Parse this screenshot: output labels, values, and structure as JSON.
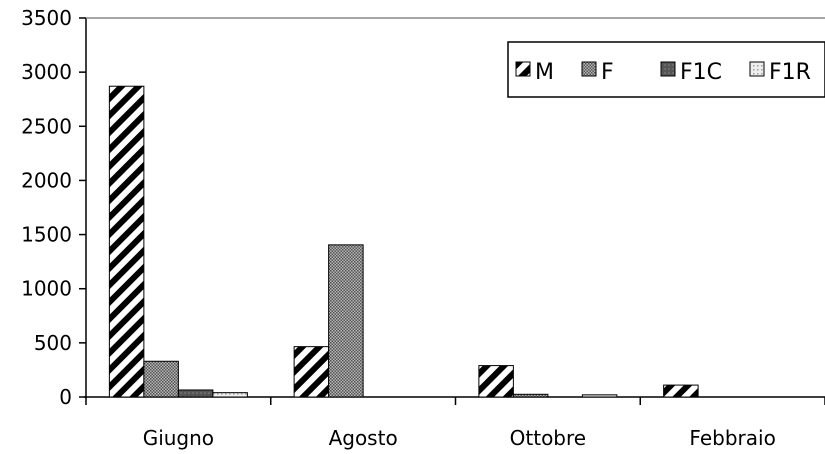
{
  "chart_data": {
    "type": "bar",
    "categories": [
      "Giugno",
      "Agosto",
      "Ottobre",
      "Febbraio"
    ],
    "series": [
      {
        "name": "M",
        "values": [
          2870,
          465,
          290,
          110
        ],
        "pattern": "diagonal-hatch",
        "color": "#000000"
      },
      {
        "name": "F",
        "values": [
          330,
          1405,
          25,
          0
        ],
        "pattern": "crosshatch",
        "color": "#8a8a8a"
      },
      {
        "name": "F1C",
        "values": [
          65,
          0,
          0,
          0
        ],
        "pattern": "solid-dark",
        "color": "#5a5a5a"
      },
      {
        "name": "F1R",
        "values": [
          40,
          0,
          20,
          0
        ],
        "pattern": "dotted-light",
        "color": "#dcdcdc"
      }
    ],
    "y_ticks": [
      "0",
      "500",
      "1000",
      "1500",
      "2000",
      "2500",
      "3000",
      "3500"
    ],
    "ylim": [
      0,
      3500
    ],
    "grid": false,
    "legend_position": "top-right",
    "title": "",
    "xlabel": "",
    "ylabel": ""
  }
}
